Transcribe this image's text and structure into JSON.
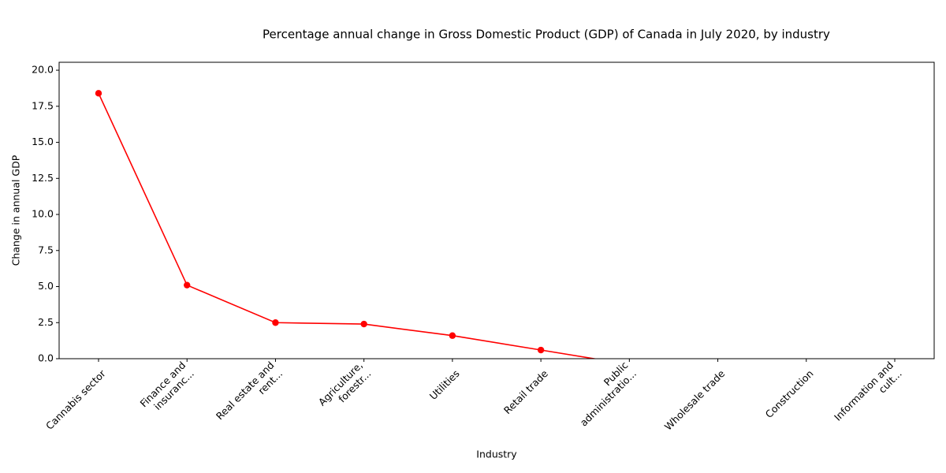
{
  "chart_data": {
    "type": "line",
    "title": "Percentage annual change in Gross Domestic Product (GDP) of Canada in July 2020, by industry",
    "x_label": "Industry",
    "y_label": "Change in annual GDP",
    "categories": [
      "Cannabis sector",
      "Finance and\ninsuranc...",
      "Real estate and\nrent...",
      "Agriculture,\nforestr...",
      "Utilities",
      "Retail trade",
      "Public\nadministratio...",
      "Wholesale trade",
      "Construction",
      "Information and\ncult..."
    ],
    "series": [
      {
        "name": "Change in annual GDP",
        "color": "#ff0000",
        "values": [
          18.4,
          5.1,
          2.5,
          2.4,
          1.6,
          0.6,
          -0.4,
          null,
          null,
          null
        ]
      }
    ],
    "ylim": [
      0,
      20.55
    ],
    "yticks": [
      {
        "value": 0,
        "label": "0.0"
      },
      {
        "value": 2.5,
        "label": "2.5"
      },
      {
        "value": 5,
        "label": "5.0"
      },
      {
        "value": 7.5,
        "label": "7.5"
      },
      {
        "value": 10,
        "label": "10.0"
      },
      {
        "value": 12.5,
        "label": "12.5"
      },
      {
        "value": 15,
        "label": "15.0"
      },
      {
        "value": 17.5,
        "label": "17.5"
      },
      {
        "value": 20,
        "label": "20.0"
      }
    ],
    "grid": false
  }
}
